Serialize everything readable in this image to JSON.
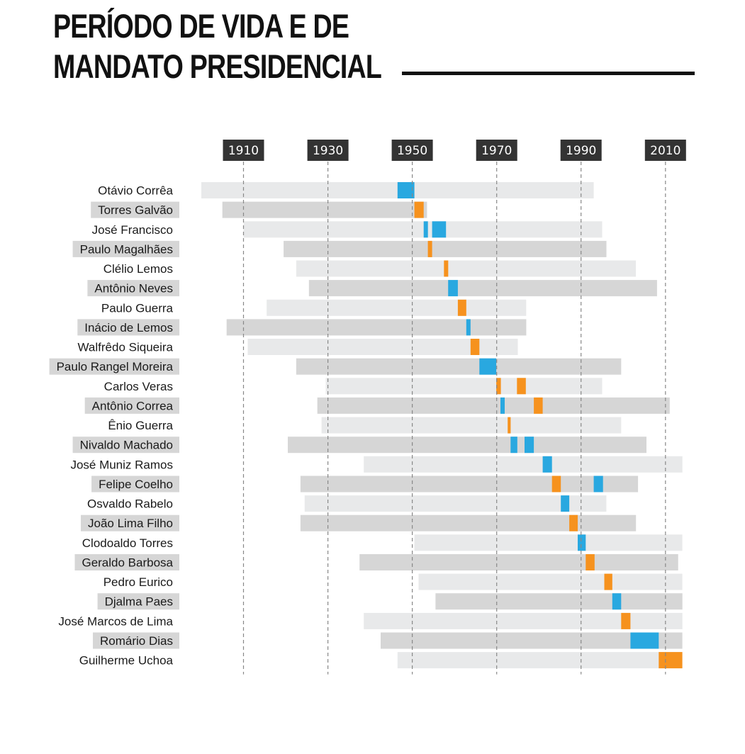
{
  "title": {
    "line1": "PERÍODO DE VIDA E DE",
    "line2": "MANDATO PRESIDENCIAL"
  },
  "colors": {
    "light_bar": "#e8e9ea",
    "dark_bar": "#d6d6d6",
    "term_blue": "#29a8e0",
    "term_orange": "#f6921e",
    "label_highlight": "#d6d6d6",
    "tick_box": "#333333",
    "grid": "#888888"
  },
  "chart_data": {
    "type": "timeline",
    "title": "PERÍODO DE VIDA E DE MANDATO PRESIDENCIAL",
    "x_axis": {
      "range": [
        1900,
        2011
      ],
      "ticks": [
        1910,
        1930,
        1950,
        1970,
        1990,
        2010
      ],
      "grid": "dashed"
    },
    "legend": "none",
    "rows": [
      {
        "name": "Otávio Corrêa",
        "life": [
          1900,
          1993
        ],
        "terms": [
          {
            "start": 1946.5,
            "end": 1950.5,
            "color": "blue"
          }
        ]
      },
      {
        "name": "Torres Galvão",
        "life": [
          1905,
          1953.5
        ],
        "terms": [
          {
            "start": 1950.5,
            "end": 1952.7,
            "color": "orange"
          }
        ]
      },
      {
        "name": "José Francisco",
        "life": [
          1910,
          1995
        ],
        "terms": [
          {
            "start": 1952.7,
            "end": 1953.7,
            "color": "blue"
          },
          {
            "start": 1954.7,
            "end": 1958,
            "color": "blue"
          }
        ]
      },
      {
        "name": "Paulo Magalhães",
        "life": [
          1919.5,
          1996
        ],
        "terms": [
          {
            "start": 1953.7,
            "end": 1954.7,
            "color": "orange"
          }
        ]
      },
      {
        "name": "Clélio Lemos",
        "life": [
          1922.5,
          2003
        ],
        "terms": [
          {
            "start": 1957.5,
            "end": 1958.5,
            "color": "orange"
          }
        ]
      },
      {
        "name": "Antônio Neves",
        "life": [
          1925.5,
          2008
        ],
        "terms": [
          {
            "start": 1958.5,
            "end": 1960.8,
            "color": "blue"
          }
        ]
      },
      {
        "name": "Paulo Guerra",
        "life": [
          1915.5,
          1977
        ],
        "terms": [
          {
            "start": 1960.8,
            "end": 1962.8,
            "color": "orange"
          }
        ]
      },
      {
        "name": "Inácio de Lemos",
        "life": [
          1906,
          1977
        ],
        "terms": [
          {
            "start": 1962.8,
            "end": 1963.8,
            "color": "blue"
          }
        ]
      },
      {
        "name": "Walfrêdo Siqueira",
        "life": [
          1911,
          1975
        ],
        "terms": [
          {
            "start": 1963.8,
            "end": 1965.9,
            "color": "orange"
          }
        ]
      },
      {
        "name": "Paulo Rangel Moreira",
        "life": [
          1922.5,
          1999.5
        ],
        "terms": [
          {
            "start": 1965.9,
            "end": 1969.9,
            "color": "blue"
          }
        ]
      },
      {
        "name": "Carlos Veras",
        "life": [
          1929.5,
          1995
        ],
        "terms": [
          {
            "start": 1969.9,
            "end": 1971,
            "color": "orange"
          },
          {
            "start": 1974.8,
            "end": 1976.9,
            "color": "orange"
          }
        ]
      },
      {
        "name": "Antônio Correa",
        "life": [
          1927.5,
          2011
        ],
        "terms": [
          {
            "start": 1970.9,
            "end": 1971.9,
            "color": "blue"
          },
          {
            "start": 1978.8,
            "end": 1980.9,
            "color": "orange"
          }
        ]
      },
      {
        "name": "Ênio Guerra",
        "life": [
          1928.5,
          1999.5
        ],
        "terms": [
          {
            "start": 1972.6,
            "end": 1973.3,
            "color": "orange"
          }
        ]
      },
      {
        "name": "Nivaldo Machado",
        "life": [
          1920.5,
          2005.5
        ],
        "terms": [
          {
            "start": 1973.3,
            "end": 1974.9,
            "color": "blue"
          },
          {
            "start": 1976.6,
            "end": 1978.8,
            "color": "blue"
          }
        ]
      },
      {
        "name": "José Muniz Ramos",
        "life": [
          1938.5,
          2014
        ],
        "terms": [
          {
            "start": 1980.9,
            "end": 1983.1,
            "color": "blue"
          }
        ]
      },
      {
        "name": "Felipe Coelho",
        "life": [
          1923.5,
          2003.5
        ],
        "terms": [
          {
            "start": 1983.1,
            "end": 1985.2,
            "color": "orange"
          },
          {
            "start": 1993,
            "end": 1995.2,
            "color": "blue"
          }
        ]
      },
      {
        "name": "Osvaldo Rabelo",
        "life": [
          1924.5,
          1996
        ],
        "terms": [
          {
            "start": 1985.2,
            "end": 1987.2,
            "color": "blue"
          }
        ]
      },
      {
        "name": "João Lima Filho",
        "life": [
          1923.5,
          2003
        ],
        "terms": [
          {
            "start": 1987.2,
            "end": 1989.2,
            "color": "orange"
          }
        ]
      },
      {
        "name": "Clodoaldo Torres",
        "life": [
          1950.5,
          2014
        ],
        "terms": [
          {
            "start": 1989.2,
            "end": 1991.1,
            "color": "blue"
          }
        ]
      },
      {
        "name": "Geraldo Barbosa",
        "life": [
          1937.5,
          2013
        ],
        "terms": [
          {
            "start": 1991.1,
            "end": 1993.2,
            "color": "orange"
          }
        ]
      },
      {
        "name": "Pedro Eurico",
        "life": [
          1951.5,
          2014
        ],
        "terms": [
          {
            "start": 1995.5,
            "end": 1997.4,
            "color": "orange"
          }
        ]
      },
      {
        "name": "Djalma Paes",
        "life": [
          1955.5,
          2014
        ],
        "terms": [
          {
            "start": 1997.4,
            "end": 1999.5,
            "color": "blue"
          }
        ]
      },
      {
        "name": "José Marcos de Lima",
        "life": [
          1938.5,
          2014
        ],
        "terms": [
          {
            "start": 1999.5,
            "end": 2001.7,
            "color": "orange"
          }
        ]
      },
      {
        "name": "Romário Dias",
        "life": [
          1942.5,
          2014
        ],
        "terms": [
          {
            "start": 2001.7,
            "end": 2008.4,
            "color": "blue"
          }
        ]
      },
      {
        "name": "Guilherme Uchoa",
        "life": [
          1946.5,
          2014
        ],
        "terms": [
          {
            "start": 2008.4,
            "end": 2014,
            "color": "orange"
          }
        ]
      }
    ]
  }
}
